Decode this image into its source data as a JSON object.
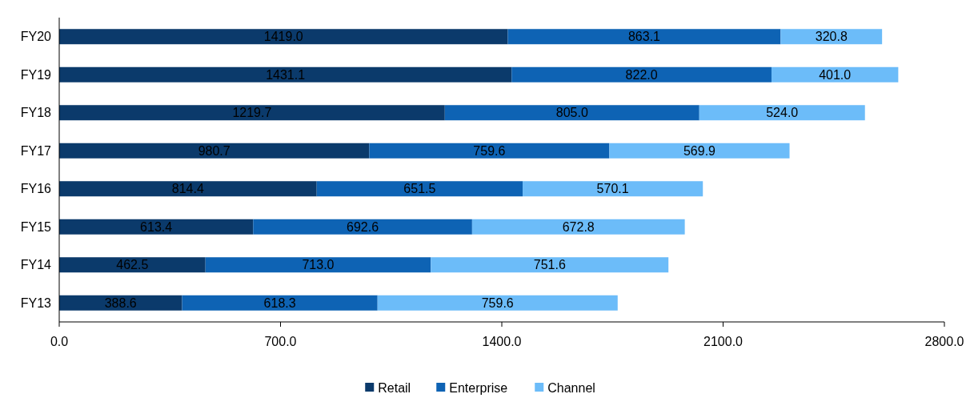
{
  "chart_data": {
    "type": "bar",
    "orientation": "horizontal",
    "stacked": true,
    "legend": "bottom",
    "grid": false,
    "categories": [
      "FY20",
      "FY19",
      "FY18",
      "FY17",
      "FY16",
      "FY15",
      "FY14",
      "FY13"
    ],
    "xlim": [
      0,
      2800
    ],
    "xticks": [
      {
        "value": 0,
        "label": "0.0"
      },
      {
        "value": 700,
        "label": "700.0"
      },
      {
        "value": 1400,
        "label": "1400.0"
      },
      {
        "value": 2100,
        "label": "2100.0"
      },
      {
        "value": 2800,
        "label": "2800.0"
      }
    ],
    "series": [
      {
        "name": "Retail",
        "color": "#0b3a6b",
        "values": [
          1419.0,
          1431.1,
          1219.7,
          980.7,
          814.4,
          613.4,
          462.5,
          388.6
        ],
        "value_labels": [
          "1419.0",
          "1431.1",
          "1219.7",
          "980.7",
          "814.4",
          "613.4",
          "462.5",
          "388.6"
        ]
      },
      {
        "name": "Enterprise",
        "color": "#0e63b4",
        "values": [
          863.1,
          822.0,
          805.0,
          759.6,
          651.5,
          692.6,
          713.0,
          618.3
        ],
        "value_labels": [
          "863.1",
          "822.0",
          "805.0",
          "759.6",
          "651.5",
          "692.6",
          "713.0",
          "618.3"
        ]
      },
      {
        "name": "Channel",
        "color": "#6cbcf9",
        "values": [
          320.8,
          401.0,
          524.0,
          569.9,
          570.1,
          672.8,
          751.6,
          759.6
        ],
        "value_labels": [
          "320.8",
          "401.0",
          "524.0",
          "569.9",
          "570.1",
          "672.8",
          "751.6",
          "759.6"
        ]
      }
    ]
  }
}
